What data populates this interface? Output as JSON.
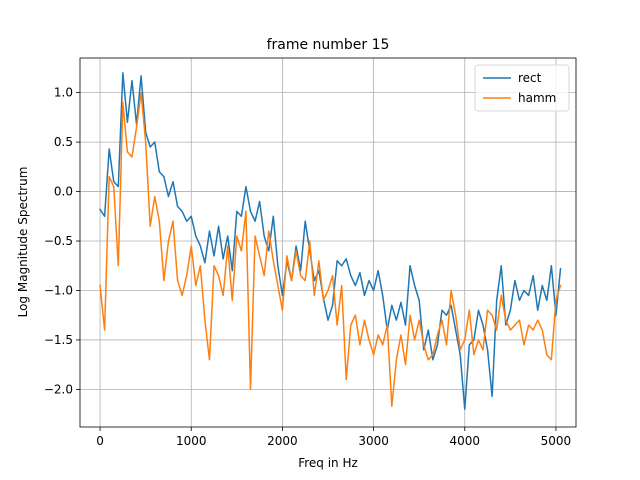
{
  "chart_data": {
    "type": "line",
    "title": "frame number 15",
    "xlabel": "Freq in Hz",
    "ylabel": "Log Magnitude Spectrum",
    "xlim": [
      -220,
      5220
    ],
    "ylim": [
      -2.38,
      1.35
    ],
    "xticks": [
      0,
      1000,
      2000,
      3000,
      4000,
      5000
    ],
    "xtick_labels": [
      "0",
      "1000",
      "2000",
      "3000",
      "4000",
      "5000"
    ],
    "yticks": [
      -2.0,
      -1.5,
      -1.0,
      -0.5,
      0.0,
      0.5,
      1.0
    ],
    "ytick_labels": [
      "−2.0",
      "−1.5",
      "−1.0",
      "−0.5",
      "0.0",
      "0.5",
      "1.0"
    ],
    "grid": true,
    "legend_position": "top-right",
    "series": [
      {
        "name": "rect",
        "color": "#1f77b4",
        "points": [
          [
            0,
            -0.18
          ],
          [
            50,
            -0.25
          ],
          [
            100,
            0.43
          ],
          [
            150,
            0.1
          ],
          [
            200,
            0.05
          ],
          [
            250,
            1.2
          ],
          [
            300,
            0.7
          ],
          [
            350,
            1.12
          ],
          [
            400,
            0.68
          ],
          [
            450,
            1.17
          ],
          [
            500,
            0.6
          ],
          [
            550,
            0.45
          ],
          [
            600,
            0.5
          ],
          [
            650,
            0.2
          ],
          [
            700,
            0.15
          ],
          [
            750,
            -0.05
          ],
          [
            800,
            0.1
          ],
          [
            850,
            -0.15
          ],
          [
            900,
            -0.2
          ],
          [
            950,
            -0.3
          ],
          [
            1000,
            -0.25
          ],
          [
            1050,
            -0.45
          ],
          [
            1100,
            -0.55
          ],
          [
            1150,
            -0.72
          ],
          [
            1200,
            -0.4
          ],
          [
            1250,
            -0.65
          ],
          [
            1300,
            -0.35
          ],
          [
            1350,
            -0.68
          ],
          [
            1400,
            -0.45
          ],
          [
            1450,
            -0.8
          ],
          [
            1500,
            -0.2
          ],
          [
            1550,
            -0.25
          ],
          [
            1600,
            0.05
          ],
          [
            1650,
            -0.2
          ],
          [
            1700,
            -0.3
          ],
          [
            1750,
            -0.1
          ],
          [
            1800,
            -0.45
          ],
          [
            1850,
            -0.6
          ],
          [
            1900,
            -0.25
          ],
          [
            1950,
            -0.75
          ],
          [
            2000,
            -1.05
          ],
          [
            2050,
            -0.7
          ],
          [
            2100,
            -0.9
          ],
          [
            2150,
            -0.55
          ],
          [
            2200,
            -0.8
          ],
          [
            2250,
            -0.3
          ],
          [
            2300,
            -0.6
          ],
          [
            2350,
            -0.9
          ],
          [
            2400,
            -0.8
          ],
          [
            2450,
            -1.08
          ],
          [
            2500,
            -1.3
          ],
          [
            2550,
            -1.15
          ],
          [
            2600,
            -0.7
          ],
          [
            2650,
            -0.75
          ],
          [
            2700,
            -0.68
          ],
          [
            2750,
            -0.85
          ],
          [
            2800,
            -0.95
          ],
          [
            2850,
            -0.82
          ],
          [
            2900,
            -1.05
          ],
          [
            2950,
            -0.9
          ],
          [
            3000,
            -1.0
          ],
          [
            3050,
            -0.8
          ],
          [
            3100,
            -1.05
          ],
          [
            3150,
            -1.4
          ],
          [
            3200,
            -1.15
          ],
          [
            3250,
            -1.3
          ],
          [
            3300,
            -1.12
          ],
          [
            3350,
            -1.35
          ],
          [
            3400,
            -0.75
          ],
          [
            3450,
            -0.95
          ],
          [
            3500,
            -1.1
          ],
          [
            3550,
            -1.6
          ],
          [
            3600,
            -1.4
          ],
          [
            3650,
            -1.7
          ],
          [
            3700,
            -1.55
          ],
          [
            3750,
            -1.2
          ],
          [
            3800,
            -1.25
          ],
          [
            3850,
            -1.15
          ],
          [
            3900,
            -1.4
          ],
          [
            3950,
            -1.65
          ],
          [
            4000,
            -2.2
          ],
          [
            4050,
            -1.55
          ],
          [
            4100,
            -1.5
          ],
          [
            4150,
            -1.2
          ],
          [
            4200,
            -1.35
          ],
          [
            4250,
            -1.6
          ],
          [
            4300,
            -2.07
          ],
          [
            4350,
            -1.1
          ],
          [
            4400,
            -0.75
          ],
          [
            4450,
            -1.35
          ],
          [
            4500,
            -1.2
          ],
          [
            4550,
            -0.9
          ],
          [
            4600,
            -1.1
          ],
          [
            4650,
            -1.0
          ],
          [
            4700,
            -1.05
          ],
          [
            4750,
            -0.85
          ],
          [
            4800,
            -1.2
          ],
          [
            4850,
            -0.95
          ],
          [
            4900,
            -1.1
          ],
          [
            4950,
            -0.75
          ],
          [
            5000,
            -1.25
          ],
          [
            5050,
            -0.78
          ]
        ]
      },
      {
        "name": "hamm",
        "color": "#ff7f0e",
        "points": [
          [
            0,
            -0.95
          ],
          [
            50,
            -1.4
          ],
          [
            100,
            0.15
          ],
          [
            150,
            0.05
          ],
          [
            200,
            -0.75
          ],
          [
            250,
            0.9
          ],
          [
            300,
            0.4
          ],
          [
            350,
            0.35
          ],
          [
            400,
            0.65
          ],
          [
            450,
            1.0
          ],
          [
            500,
            0.5
          ],
          [
            550,
            -0.35
          ],
          [
            600,
            -0.05
          ],
          [
            650,
            -0.3
          ],
          [
            700,
            -0.9
          ],
          [
            750,
            -0.5
          ],
          [
            800,
            -0.3
          ],
          [
            850,
            -0.9
          ],
          [
            900,
            -1.05
          ],
          [
            950,
            -0.85
          ],
          [
            1000,
            -0.55
          ],
          [
            1050,
            -0.95
          ],
          [
            1100,
            -0.75
          ],
          [
            1150,
            -1.3
          ],
          [
            1200,
            -1.7
          ],
          [
            1250,
            -0.75
          ],
          [
            1300,
            -0.85
          ],
          [
            1350,
            -1.05
          ],
          [
            1400,
            -0.55
          ],
          [
            1450,
            -1.1
          ],
          [
            1500,
            -0.45
          ],
          [
            1550,
            -0.6
          ],
          [
            1600,
            -0.2
          ],
          [
            1650,
            -2.0
          ],
          [
            1700,
            -0.45
          ],
          [
            1750,
            -0.65
          ],
          [
            1800,
            -0.85
          ],
          [
            1850,
            -0.4
          ],
          [
            1900,
            -0.7
          ],
          [
            1950,
            -0.95
          ],
          [
            2000,
            -1.2
          ],
          [
            2050,
            -0.65
          ],
          [
            2100,
            -0.9
          ],
          [
            2150,
            -0.6
          ],
          [
            2200,
            -0.85
          ],
          [
            2250,
            -0.9
          ],
          [
            2300,
            -0.5
          ],
          [
            2350,
            -1.05
          ],
          [
            2400,
            -0.7
          ],
          [
            2450,
            -1.1
          ],
          [
            2500,
            -1.0
          ],
          [
            2550,
            -0.85
          ],
          [
            2600,
            -1.35
          ],
          [
            2650,
            -0.95
          ],
          [
            2700,
            -1.9
          ],
          [
            2750,
            -1.35
          ],
          [
            2800,
            -1.25
          ],
          [
            2850,
            -1.55
          ],
          [
            2900,
            -1.3
          ],
          [
            2950,
            -1.5
          ],
          [
            3000,
            -1.65
          ],
          [
            3050,
            -1.45
          ],
          [
            3100,
            -1.55
          ],
          [
            3150,
            -1.35
          ],
          [
            3200,
            -2.17
          ],
          [
            3250,
            -1.7
          ],
          [
            3300,
            -1.45
          ],
          [
            3350,
            -1.75
          ],
          [
            3400,
            -1.25
          ],
          [
            3450,
            -1.5
          ],
          [
            3500,
            -1.3
          ],
          [
            3550,
            -1.55
          ],
          [
            3600,
            -1.7
          ],
          [
            3650,
            -1.65
          ],
          [
            3700,
            -1.45
          ],
          [
            3750,
            -1.3
          ],
          [
            3800,
            -1.55
          ],
          [
            3850,
            -1.0
          ],
          [
            3900,
            -1.25
          ],
          [
            3950,
            -1.6
          ],
          [
            4000,
            -1.5
          ],
          [
            4050,
            -1.2
          ],
          [
            4100,
            -1.65
          ],
          [
            4150,
            -1.5
          ],
          [
            4200,
            -1.6
          ],
          [
            4250,
            -1.2
          ],
          [
            4300,
            -1.25
          ],
          [
            4350,
            -1.4
          ],
          [
            4400,
            -1.05
          ],
          [
            4450,
            -1.3
          ],
          [
            4500,
            -1.4
          ],
          [
            4550,
            -1.35
          ],
          [
            4600,
            -1.3
          ],
          [
            4650,
            -1.55
          ],
          [
            4700,
            -1.35
          ],
          [
            4750,
            -1.4
          ],
          [
            4800,
            -1.3
          ],
          [
            4850,
            -1.4
          ],
          [
            4900,
            -1.65
          ],
          [
            4950,
            -1.7
          ],
          [
            5000,
            -1.1
          ],
          [
            5050,
            -0.95
          ]
        ]
      }
    ]
  }
}
